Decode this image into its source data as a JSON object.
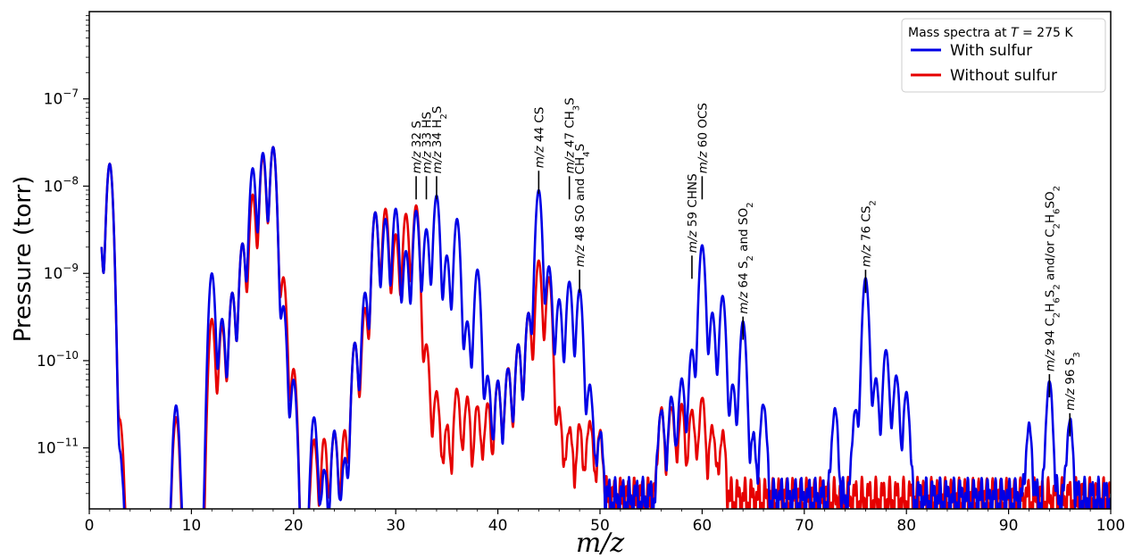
{
  "chart_data": {
    "type": "line",
    "title": "",
    "xlabel": "m/z",
    "ylabel": "Pressure (torr)",
    "xlim": [
      0,
      100
    ],
    "ylim": [
      2e-12,
      1e-06
    ],
    "yscale": "log",
    "grid": false,
    "x_ticks": [
      "0",
      "10",
      "20",
      "30",
      "40",
      "50",
      "60",
      "70",
      "80",
      "90",
      "100"
    ],
    "y_ticks": [
      {
        "base": "10",
        "exp": "−11"
      },
      {
        "base": "10",
        "exp": "−10"
      },
      {
        "base": "10",
        "exp": "−9"
      },
      {
        "base": "10",
        "exp": "−8"
      },
      {
        "base": "10",
        "exp": "−7"
      }
    ],
    "legend": {
      "position": "top-right",
      "title": {
        "pre": "Mass spectra at ",
        "var": "T",
        "post": " = 275 K"
      }
    },
    "series": [
      {
        "name": "With sulfur",
        "color": "#0000e6",
        "peaks": [
          [
            1,
            3e-09
          ],
          [
            2,
            1.8e-08
          ],
          [
            3,
            8e-12
          ],
          [
            8.5,
            3e-11
          ],
          [
            12,
            1e-09
          ],
          [
            13,
            3e-10
          ],
          [
            14,
            6e-10
          ],
          [
            15,
            2.2e-09
          ],
          [
            16,
            1.6e-08
          ],
          [
            17,
            2.4e-08
          ],
          [
            18,
            2.8e-08
          ],
          [
            19,
            4.2e-10
          ],
          [
            20,
            6e-11
          ],
          [
            22,
            2.2e-11
          ],
          [
            23,
            5e-12
          ],
          [
            24,
            1.5e-11
          ],
          [
            25,
            7e-12
          ],
          [
            26,
            1.6e-10
          ],
          [
            27,
            6e-10
          ],
          [
            28,
            5e-09
          ],
          [
            29,
            4.2e-09
          ],
          [
            30,
            5.5e-09
          ],
          [
            31,
            1.8e-09
          ],
          [
            32,
            5.2e-09
          ],
          [
            33,
            3.2e-09
          ],
          [
            34,
            7.8e-09
          ],
          [
            35,
            1.6e-09
          ],
          [
            36,
            4.2e-09
          ],
          [
            37,
            2.8e-10
          ],
          [
            38,
            1.1e-09
          ],
          [
            39,
            6.5e-11
          ],
          [
            40,
            5.5e-11
          ],
          [
            41,
            8e-11
          ],
          [
            42,
            1.5e-10
          ],
          [
            43,
            3.5e-10
          ],
          [
            44,
            9e-09
          ],
          [
            45,
            1.2e-09
          ],
          [
            46,
            5e-10
          ],
          [
            47,
            8e-10
          ],
          [
            48,
            6.5e-10
          ],
          [
            49,
            5e-11
          ],
          [
            50,
            1.2e-11
          ],
          [
            56,
            2.5e-11
          ],
          [
            57,
            3.5e-11
          ],
          [
            58,
            6e-11
          ],
          [
            59,
            1.3e-10
          ],
          [
            60,
            2.1e-09
          ],
          [
            61,
            3.5e-10
          ],
          [
            62,
            5.5e-10
          ],
          [
            63,
            5e-11
          ],
          [
            64,
            2.8e-10
          ],
          [
            65,
            1.1e-11
          ],
          [
            66,
            3e-11
          ],
          [
            73,
            2.5e-11
          ],
          [
            75,
            2.5e-11
          ],
          [
            76,
            8.8e-10
          ],
          [
            77,
            6e-11
          ],
          [
            78,
            1.3e-10
          ],
          [
            79,
            6.5e-11
          ],
          [
            80,
            4e-11
          ],
          [
            92,
            1.5e-11
          ],
          [
            94,
            5.5e-11
          ],
          [
            96,
            1.8e-11
          ]
        ]
      },
      {
        "name": "Without sulfur",
        "color": "#e60000",
        "peaks": [
          [
            1,
            3e-09
          ],
          [
            2,
            1.8e-08
          ],
          [
            3,
            2e-11
          ],
          [
            8.5,
            2.2e-11
          ],
          [
            12,
            3e-10
          ],
          [
            13,
            2.5e-10
          ],
          [
            14,
            6e-10
          ],
          [
            15,
            2.2e-09
          ],
          [
            16,
            8e-09
          ],
          [
            17,
            2.2e-08
          ],
          [
            18,
            2.8e-08
          ],
          [
            19,
            9e-10
          ],
          [
            20,
            8e-11
          ],
          [
            22,
            1.2e-11
          ],
          [
            23,
            1.2e-11
          ],
          [
            24,
            1.5e-11
          ],
          [
            25,
            1.5e-11
          ],
          [
            26,
            1.6e-10
          ],
          [
            27,
            4e-10
          ],
          [
            28,
            5e-09
          ],
          [
            29,
            5.5e-09
          ],
          [
            30,
            2.8e-09
          ],
          [
            31,
            4.8e-09
          ],
          [
            32,
            6e-09
          ],
          [
            33,
            1.5e-10
          ],
          [
            34,
            4.2e-11
          ],
          [
            35,
            1.5e-11
          ],
          [
            36,
            4.5e-11
          ],
          [
            37,
            3.5e-11
          ],
          [
            38,
            2.8e-11
          ],
          [
            39,
            3e-11
          ],
          [
            40,
            5.5e-11
          ],
          [
            41,
            8e-11
          ],
          [
            42,
            1.5e-10
          ],
          [
            43,
            3.5e-10
          ],
          [
            44,
            1.4e-09
          ],
          [
            45,
            9e-10
          ],
          [
            46,
            2.5e-11
          ],
          [
            47,
            1.5e-11
          ],
          [
            48,
            1.5e-11
          ],
          [
            49,
            1.8e-11
          ],
          [
            50,
            1.2e-11
          ],
          [
            56,
            2.5e-11
          ],
          [
            57,
            2.8e-11
          ],
          [
            58,
            2.8e-11
          ],
          [
            59,
            2.5e-11
          ],
          [
            60,
            3.5e-11
          ],
          [
            61,
            1.5e-11
          ],
          [
            62,
            1.2e-11
          ]
        ]
      }
    ],
    "annotations": [
      {
        "x": 32,
        "y": 1.3e-08,
        "parts": [
          [
            "it",
            "m/z"
          ],
          [
            "",
            "  32  S"
          ]
        ]
      },
      {
        "x": 33,
        "y": 1.3e-08,
        "parts": [
          [
            "it",
            "m/z"
          ],
          [
            "",
            "  33 HS"
          ]
        ]
      },
      {
        "x": 34,
        "y": 1.3e-08,
        "parts": [
          [
            "it",
            "m/z"
          ],
          [
            "",
            "  34 H"
          ],
          [
            "sub",
            "2"
          ],
          [
            "",
            "S"
          ]
        ]
      },
      {
        "x": 44,
        "y": 1.5e-08,
        "parts": [
          [
            "it",
            "m/z"
          ],
          [
            "",
            "  44  CS"
          ]
        ]
      },
      {
        "x": 47,
        "y": 1.3e-08,
        "parts": [
          [
            "it",
            "m/z"
          ],
          [
            "",
            "  47 CH"
          ],
          [
            "sub",
            "3"
          ],
          [
            "",
            "S"
          ]
        ]
      },
      {
        "x": 48,
        "y": 1.1e-09,
        "parts": [
          [
            "it",
            "m/z"
          ],
          [
            "",
            "  48 SO and CH"
          ],
          [
            "sub",
            "4"
          ],
          [
            "",
            "S"
          ]
        ]
      },
      {
        "x": 59,
        "y": 1.6e-09,
        "parts": [
          [
            "it",
            "m/z"
          ],
          [
            "",
            "  59 CHNS"
          ]
        ]
      },
      {
        "x": 60,
        "y": 1.3e-08,
        "parts": [
          [
            "it",
            "m/z"
          ],
          [
            "",
            "  60  OCS"
          ]
        ]
      },
      {
        "x": 64,
        "y": 3.2e-10,
        "parts": [
          [
            "it",
            "m/z"
          ],
          [
            "",
            "  64 S"
          ],
          [
            "sub",
            "2"
          ],
          [
            "",
            " and SO"
          ],
          [
            "sub",
            "2"
          ]
        ]
      },
      {
        "x": 76,
        "y": 1.1e-09,
        "parts": [
          [
            "it",
            "m/z"
          ],
          [
            "",
            "  76 CS"
          ],
          [
            "sub",
            "2"
          ]
        ]
      },
      {
        "x": 94,
        "y": 7e-11,
        "parts": [
          [
            "it",
            "m/z"
          ],
          [
            "",
            "  94 C"
          ],
          [
            "sub",
            "2"
          ],
          [
            "",
            "H"
          ],
          [
            "sub",
            "6"
          ],
          [
            "",
            "S"
          ],
          [
            "sub",
            "2"
          ],
          [
            "",
            " and/or C"
          ],
          [
            "sub",
            "2"
          ],
          [
            "",
            "H"
          ],
          [
            "sub",
            "6"
          ],
          [
            "",
            "SO"
          ],
          [
            "sub",
            "2"
          ]
        ]
      },
      {
        "x": 96,
        "y": 2.5e-11,
        "parts": [
          [
            "it",
            "m/z"
          ],
          [
            "",
            "  96 S"
          ],
          [
            "sub",
            "3"
          ]
        ]
      }
    ]
  }
}
